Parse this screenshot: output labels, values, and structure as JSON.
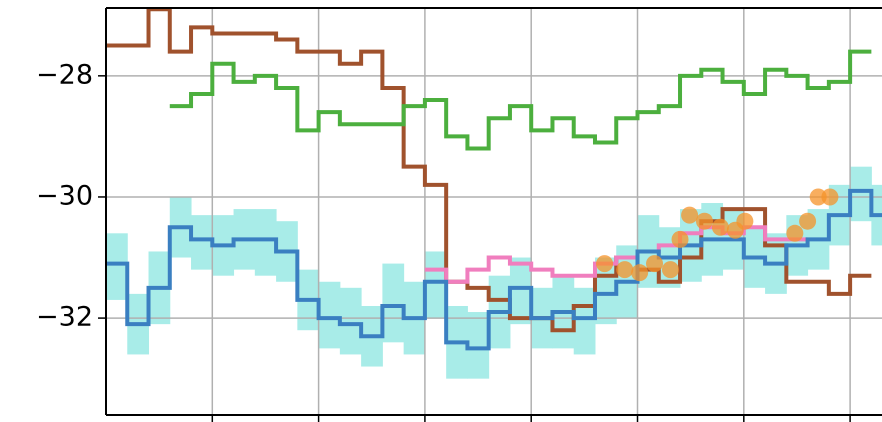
{
  "chart_data": {
    "type": "line",
    "step": true,
    "grid": true,
    "xlim": [
      0,
      7.3
    ],
    "xticks": [
      1,
      2,
      3,
      4,
      5,
      6,
      7
    ],
    "ylim": [
      -33.6,
      -26.88
    ],
    "yticks": [
      {
        "value": -28,
        "label": "−28"
      },
      {
        "value": -30,
        "label": "−30"
      },
      {
        "value": -32,
        "label": "−32"
      }
    ],
    "x": [
      0,
      0.2,
      0.4,
      0.6,
      0.8,
      1.0,
      1.2,
      1.4,
      1.6,
      1.8,
      2.0,
      2.2,
      2.4,
      2.6,
      2.8,
      3.0,
      3.2,
      3.4,
      3.6,
      3.8,
      4.0,
      4.2,
      4.4,
      4.6,
      4.8,
      5.0,
      5.2,
      5.4,
      5.6,
      5.8,
      6.0,
      6.2,
      6.4,
      6.6,
      6.8,
      7.0,
      7.2
    ],
    "band": {
      "color": "#a8ece8",
      "upper": [
        -30.6,
        -31.6,
        -30.9,
        -30.0,
        -30.3,
        -30.3,
        -30.2,
        -30.2,
        -30.4,
        -31.2,
        -31.4,
        -31.5,
        -31.8,
        -31.1,
        -31.4,
        -30.9,
        -31.8,
        -31.9,
        -31.3,
        -31.0,
        -31.5,
        -31.3,
        -31.5,
        -31.0,
        -30.8,
        -30.3,
        -30.5,
        -30.2,
        -30.1,
        -30.2,
        -30.5,
        -30.6,
        -30.3,
        -30.2,
        -29.8,
        -29.5,
        -29.8
      ],
      "lower": [
        -31.7,
        -32.6,
        -32.1,
        -31.0,
        -31.2,
        -31.3,
        -31.2,
        -31.3,
        -31.4,
        -32.2,
        -32.5,
        -32.6,
        -32.8,
        -32.4,
        -32.6,
        -32.0,
        -33.0,
        -33.0,
        -32.5,
        -32.1,
        -32.5,
        -32.5,
        -32.6,
        -32.1,
        -32.0,
        -31.5,
        -31.5,
        -31.4,
        -31.3,
        -31.2,
        -31.5,
        -31.6,
        -31.3,
        -31.2,
        -30.8,
        -30.4,
        -30.8
      ]
    },
    "series": [
      {
        "color": "#a0522d",
        "values": [
          -27.5,
          -27.5,
          -26.9,
          -27.6,
          -27.2,
          -27.3,
          -27.3,
          -27.3,
          -27.4,
          -27.6,
          -27.6,
          -27.8,
          -27.6,
          -28.2,
          -29.5,
          -29.8,
          -31.4,
          -31.5,
          -31.7,
          -32.0,
          -32.0,
          -32.2,
          -31.8,
          -31.3,
          -31.0,
          -31.2,
          -31.4,
          -31.0,
          -30.4,
          -30.2,
          -30.2,
          -30.8,
          -31.4,
          -31.4,
          -31.6,
          -31.3,
          null
        ]
      },
      {
        "color": "#4caf3e",
        "values": [
          null,
          null,
          null,
          -28.5,
          -28.3,
          -27.8,
          -28.1,
          -28.0,
          -28.2,
          -28.9,
          -28.6,
          -28.8,
          -28.8,
          -28.8,
          -28.5,
          -28.4,
          -29.0,
          -29.2,
          -28.7,
          -28.5,
          -28.9,
          -28.7,
          -29.0,
          -29.1,
          -28.7,
          -28.6,
          -28.5,
          -28.0,
          -27.9,
          -28.1,
          -28.3,
          -27.9,
          -28.0,
          -28.2,
          -28.1,
          -27.6,
          null
        ]
      },
      {
        "color": "#f07ebe",
        "values": [
          null,
          null,
          null,
          null,
          null,
          null,
          null,
          null,
          null,
          null,
          null,
          null,
          null,
          null,
          null,
          -31.2,
          -31.4,
          -31.2,
          -31.0,
          -31.1,
          -31.2,
          -31.3,
          -31.3,
          -31.1,
          -31.0,
          -30.9,
          -30.8,
          -30.6,
          -30.5,
          -30.6,
          -30.5,
          -30.7,
          -30.7,
          null,
          null,
          null,
          null
        ]
      },
      {
        "color": "#3a7fc1",
        "values": [
          -31.1,
          -32.1,
          -31.5,
          -30.5,
          -30.7,
          -30.8,
          -30.7,
          -30.7,
          -30.9,
          -31.7,
          -32.0,
          -32.1,
          -32.3,
          -31.8,
          -32.0,
          -31.4,
          -32.4,
          -32.5,
          -31.9,
          -31.5,
          -32.0,
          -31.9,
          -32.0,
          -31.6,
          -31.4,
          -30.9,
          -31.0,
          -30.8,
          -30.7,
          -30.7,
          -31.0,
          -31.1,
          -30.8,
          -30.7,
          -30.3,
          -29.9,
          -30.3
        ]
      }
    ],
    "scatter": {
      "color": "#f5932a",
      "x": [
        4.69,
        4.88,
        5.02,
        5.16,
        5.31,
        5.4,
        5.49,
        5.63,
        5.78,
        5.92,
        6.01,
        6.48,
        6.6,
        6.7,
        6.81
      ],
      "y": [
        -31.1,
        -31.2,
        -31.25,
        -31.1,
        -31.2,
        -30.7,
        -30.3,
        -30.4,
        -30.5,
        -30.55,
        -30.4,
        -30.6,
        -30.4,
        -30.0,
        -30.0
      ]
    }
  }
}
